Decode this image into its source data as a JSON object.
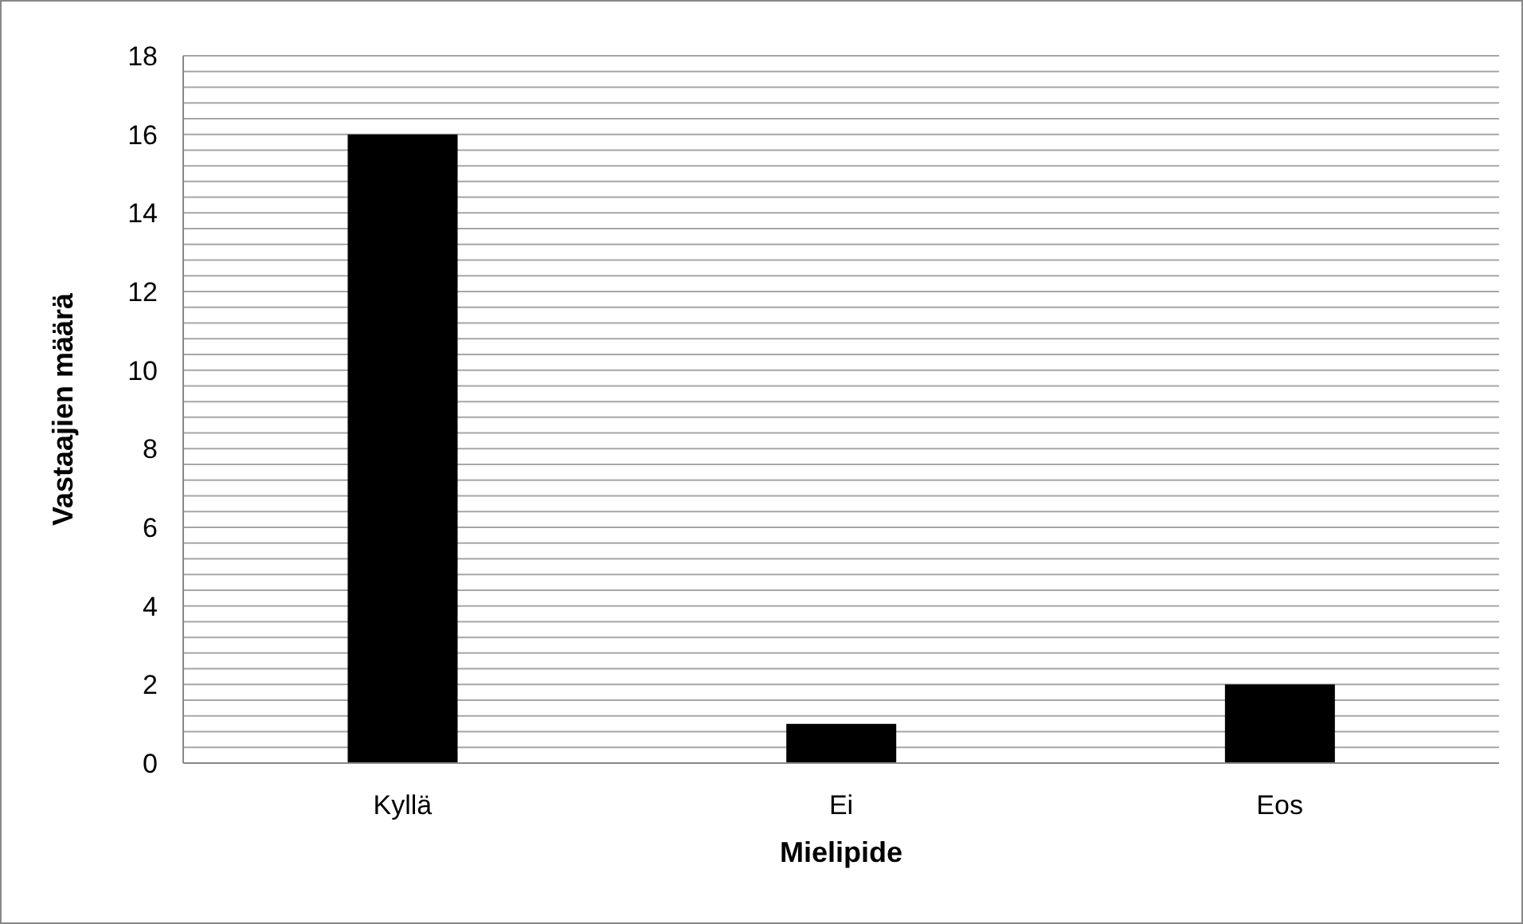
{
  "chart_data": {
    "type": "bar",
    "xlabel": "Mielipide",
    "ylabel": "Vastaajien määrä",
    "categories": [
      "Kyllä",
      "Ei",
      "Eos"
    ],
    "values": [
      16,
      1,
      2
    ],
    "color": "#000000",
    "ylim": [
      0,
      18
    ],
    "yticks": [
      0,
      {
        "value": 0.4,
        "label": null
      },
      {
        "value": 0.8,
        "label": null
      },
      {
        "value": 1.2,
        "label": null
      },
      {
        "value": 1.6,
        "label": null
      },
      2,
      {
        "value": 2.4,
        "label": null
      },
      {
        "value": 2.8,
        "label": null
      },
      {
        "value": 3.2,
        "label": null
      },
      {
        "value": 3.6,
        "label": null
      },
      4,
      {
        "value": 4.4,
        "label": null
      },
      {
        "value": 4.8,
        "label": null
      },
      {
        "value": 5.2,
        "label": null
      },
      {
        "value": 5.6,
        "label": null
      },
      6,
      {
        "value": 6.4,
        "label": null
      },
      {
        "value": 6.8,
        "label": null
      },
      {
        "value": 7.2,
        "label": null
      },
      {
        "value": 7.6,
        "label": null
      },
      8,
      {
        "value": 8.4,
        "label": null
      },
      {
        "value": 8.8,
        "label": null
      },
      {
        "value": 9.2,
        "label": null
      },
      {
        "value": 9.6,
        "label": null
      },
      10,
      {
        "value": 10.4,
        "label": null
      },
      {
        "value": 10.8,
        "label": null
      },
      {
        "value": 11.2,
        "label": null
      },
      {
        "value": 11.6,
        "label": null
      },
      12,
      {
        "value": 12.4,
        "label": null
      },
      {
        "value": 12.8,
        "label": null
      },
      {
        "value": 13.2,
        "label": null
      },
      {
        "value": 13.6,
        "label": null
      },
      14,
      {
        "value": 14.4,
        "label": null
      },
      {
        "value": 14.8,
        "label": null
      },
      {
        "value": 15.2,
        "label": null
      },
      {
        "value": 15.6,
        "label": null
      },
      16,
      {
        "value": 16.4,
        "label": null
      },
      {
        "value": 16.8,
        "label": null
      },
      {
        "value": 17.2,
        "label": null
      },
      {
        "value": 17.6,
        "label": null
      },
      18
    ],
    "grid": "y"
  }
}
